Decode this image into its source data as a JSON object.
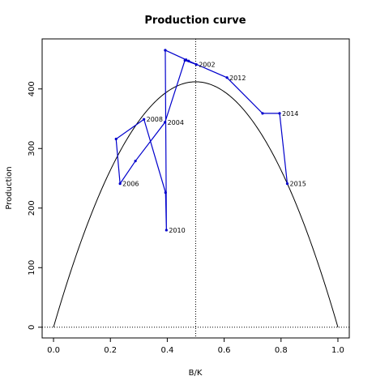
{
  "chart_data": {
    "type": "line",
    "title": "Production curve",
    "xlabel": "B/K",
    "ylabel": "Production",
    "xlim": [
      -0.04,
      1.04
    ],
    "ylim": [
      -18,
      484
    ],
    "x_ticks": [
      0.0,
      0.2,
      0.4,
      0.6,
      0.8,
      1.0
    ],
    "x_tick_labels": [
      "0.0",
      "0.2",
      "0.4",
      "0.6",
      "0.8",
      "1.0"
    ],
    "y_ticks": [
      0,
      100,
      200,
      300,
      400
    ],
    "y_tick_labels": [
      "0",
      "100",
      "200",
      "300",
      "400"
    ],
    "curve": {
      "type": "parabola",
      "r_times_K_over_4": 412,
      "color": "#000000"
    },
    "reference_lines": {
      "vertical_x": 0.5,
      "horizontal_y": 0,
      "style": "dotted"
    },
    "series": [
      {
        "color": "#0000cc",
        "points": [
          {
            "x": 0.393,
            "y": 465,
            "label": ""
          },
          {
            "x": 0.466,
            "y": 449,
            "label": ""
          },
          {
            "x": 0.502,
            "y": 441,
            "label": "2002"
          },
          {
            "x": 0.462,
            "y": 448,
            "label": ""
          },
          {
            "x": 0.392,
            "y": 344,
            "label": "2004"
          },
          {
            "x": 0.288,
            "y": 279,
            "label": ""
          },
          {
            "x": 0.234,
            "y": 241,
            "label": "2006"
          },
          {
            "x": 0.22,
            "y": 316,
            "label": ""
          },
          {
            "x": 0.318,
            "y": 349,
            "label": "2008"
          },
          {
            "x": 0.394,
            "y": 226,
            "label": ""
          },
          {
            "x": 0.397,
            "y": 163,
            "label": "2010"
          },
          {
            "x": 0.393,
            "y": 465,
            "label": ""
          },
          {
            "x": 0.475,
            "y": 447,
            "label": ""
          },
          {
            "x": 0.61,
            "y": 419,
            "label": "2012"
          },
          {
            "x": 0.735,
            "y": 359,
            "label": ""
          },
          {
            "x": 0.795,
            "y": 359,
            "label": "2014"
          },
          {
            "x": 0.822,
            "y": 241,
            "label": "2015"
          }
        ]
      }
    ]
  }
}
